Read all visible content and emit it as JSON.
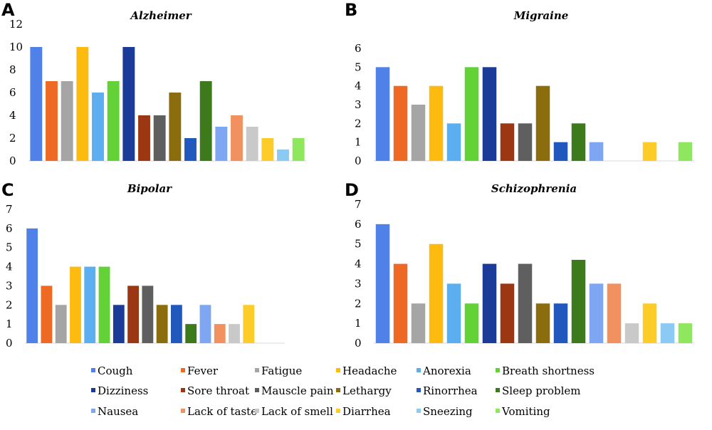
{
  "legend": [
    {
      "name": "Cough",
      "color": "#4f81e8"
    },
    {
      "name": "Fever",
      "color": "#ee6a24"
    },
    {
      "name": "Fatigue",
      "color": "#a5a5a5"
    },
    {
      "name": "Headache",
      "color": "#fdbb10"
    },
    {
      "name": "Anorexia",
      "color": "#5baff0"
    },
    {
      "name": "Breath shortness",
      "color": "#63d236"
    },
    {
      "name": "Dizziness",
      "color": "#1b3b98"
    },
    {
      "name": "Sore throat",
      "color": "#9c3713"
    },
    {
      "name": "Mauscle pain",
      "color": "#5f5f5f"
    },
    {
      "name": "Lethargy",
      "color": "#8c6d0e"
    },
    {
      "name": "Rinorrhea",
      "color": "#2058bd"
    },
    {
      "name": "Sleep problem",
      "color": "#3d7a1c"
    },
    {
      "name": "Nausea",
      "color": "#7ea6f2"
    },
    {
      "name": "Lack of taste",
      "color": "#f29160"
    },
    {
      "name": "Lack of smell",
      "color": "#c9c9c9"
    },
    {
      "name": "Diarrhea",
      "color": "#fdcc29"
    },
    {
      "name": "Sneezing",
      "color": "#8ccaf6"
    },
    {
      "name": "Vomiting",
      "color": "#8ee75d"
    }
  ],
  "chart_data": [
    {
      "panel": "A",
      "type": "bar",
      "title": "Alzheimer",
      "categories": [
        "Cough",
        "Fever",
        "Fatigue",
        "Headache",
        "Anorexia",
        "Breath shortness",
        "Dizziness",
        "Sore throat",
        "Mauscle pain",
        "Lethargy",
        "Rinorrhea",
        "Sleep problem",
        "Nausea",
        "Lack of taste",
        "Lack of smell",
        "Diarrhea",
        "Sneezing",
        "Vomiting"
      ],
      "values": [
        10,
        7,
        7,
        10,
        6,
        7,
        10,
        4,
        4,
        6,
        2,
        7,
        3,
        4,
        3,
        2,
        1,
        2
      ],
      "ylim": [
        0,
        12
      ],
      "yticks": [
        "0",
        "2",
        "4",
        "6",
        "8",
        "10",
        "12"
      ]
    },
    {
      "panel": "B",
      "type": "bar",
      "title": "Migraine",
      "categories": [
        "Cough",
        "Fever",
        "Fatigue",
        "Headache",
        "Anorexia",
        "Breath shortness",
        "Dizziness",
        "Sore throat",
        "Mauscle pain",
        "Lethargy",
        "Rinorrhea",
        "Sleep problem",
        "Nausea",
        "Lack of taste",
        "Lack of smell",
        "Diarrhea",
        "Sneezing",
        "Vomiting"
      ],
      "values": [
        5,
        4,
        3,
        4,
        2,
        5,
        5,
        2,
        2,
        4,
        1,
        2,
        1,
        0,
        0,
        1,
        0,
        1
      ],
      "ylim": [
        0,
        6
      ],
      "yticks": [
        "0",
        "1",
        "2",
        "3",
        "4",
        "5",
        "6"
      ]
    },
    {
      "panel": "C",
      "type": "bar",
      "title": "Bipolar",
      "categories": [
        "Cough",
        "Fever",
        "Fatigue",
        "Headache",
        "Anorexia",
        "Breath shortness",
        "Dizziness",
        "Sore throat",
        "Mauscle pain",
        "Lethargy",
        "Rinorrhea",
        "Sleep problem",
        "Nausea",
        "Lack of taste",
        "Lack of smell",
        "Diarrhea",
        "Sneezing",
        "Vomiting"
      ],
      "values": [
        6,
        3,
        2,
        4,
        4,
        4,
        2,
        3,
        3,
        2,
        2,
        1,
        2,
        1,
        1,
        2,
        0,
        0
      ],
      "ylim": [
        0,
        7
      ],
      "yticks": [
        "0",
        "1",
        "2",
        "3",
        "4",
        "5",
        "6",
        "7"
      ]
    },
    {
      "panel": "D",
      "type": "bar",
      "title": "Schizophrenia",
      "categories": [
        "Cough",
        "Fever",
        "Fatigue",
        "Headache",
        "Anorexia",
        "Breath shortness",
        "Dizziness",
        "Sore throat",
        "Mauscle pain",
        "Lethargy",
        "Rinorrhea",
        "Sleep problem",
        "Nausea",
        "Lack of taste",
        "Lack of smell",
        "Diarrhea",
        "Sneezing",
        "Vomiting"
      ],
      "values": [
        6,
        4,
        2,
        5,
        3,
        2,
        4,
        3,
        4,
        2,
        2,
        4.2,
        3,
        3,
        1,
        2,
        1,
        1
      ],
      "ylim": [
        0,
        7
      ],
      "yticks": [
        "0",
        "1",
        "2",
        "3",
        "4",
        "5",
        "6",
        "7"
      ]
    }
  ]
}
